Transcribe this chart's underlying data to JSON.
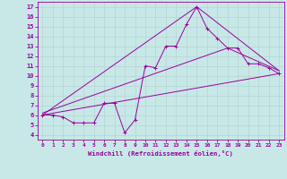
{
  "background_color": "#c8e8e8",
  "grid_color": "#b8d8d8",
  "line_color": "#990099",
  "xlabel": "Windchill (Refroidissement éolien,°C)",
  "ylabel_ticks": [
    4,
    5,
    6,
    7,
    8,
    9,
    10,
    11,
    12,
    13,
    14,
    15,
    16,
    17
  ],
  "xticks": [
    0,
    1,
    2,
    3,
    4,
    5,
    6,
    7,
    8,
    9,
    10,
    11,
    12,
    13,
    14,
    15,
    16,
    17,
    18,
    19,
    20,
    21,
    22,
    23
  ],
  "xlim": [
    -0.5,
    23.5
  ],
  "ylim": [
    3.5,
    17.5
  ],
  "series1_x": [
    0,
    1,
    2,
    3,
    4,
    5,
    6,
    7,
    8,
    9,
    10,
    11,
    12,
    13,
    14,
    15,
    16,
    17,
    18,
    19,
    20,
    21,
    22,
    23
  ],
  "series1_y": [
    6.0,
    6.0,
    5.8,
    5.2,
    5.2,
    5.2,
    7.2,
    7.2,
    4.2,
    5.5,
    11.0,
    10.8,
    13.0,
    13.0,
    15.2,
    17.0,
    14.8,
    13.8,
    12.8,
    12.8,
    11.2,
    11.2,
    10.8,
    10.2
  ],
  "series2_x": [
    0,
    23
  ],
  "series2_y": [
    6.0,
    10.2
  ],
  "series3_x": [
    0,
    15,
    23
  ],
  "series3_y": [
    6.0,
    17.0,
    10.5
  ],
  "series4_x": [
    0,
    18,
    23
  ],
  "series4_y": [
    6.2,
    12.8,
    10.5
  ]
}
